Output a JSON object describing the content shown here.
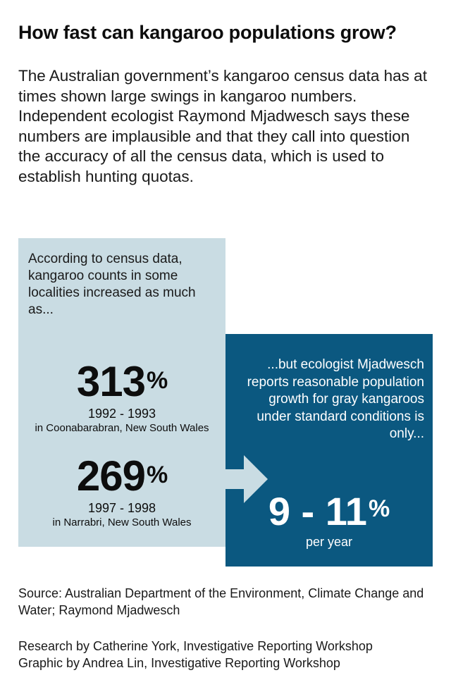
{
  "title": "How fast can kangaroo populations grow?",
  "intro": "The Australian government’s kangaroo census data has at times shown large swings in kangaroo numbers. Independent ecologist Raymond Mjadwesch says these numbers are implausible and that they call into question the accuracy of all the census data, which is used to establish hunting quotas.",
  "left_panel": {
    "lead": "According to census data, kangaroo counts in some localities increased as much as...",
    "stats": [
      {
        "value": "313",
        "unit": "%",
        "years": "1992 - 1993",
        "place": "in Coonabarabran, New South Wales"
      },
      {
        "value": "269",
        "unit": "%",
        "years": "1997 - 1998",
        "place": "in Narrabri, New South Wales"
      }
    ]
  },
  "right_panel": {
    "lead": "...but ecologist Mjadwesch reports reasonable population growth for gray kangaroos under standard conditions is only...",
    "value": "9 - 11",
    "unit": "%",
    "per": "per year"
  },
  "arrow_icon": "right-arrow-icon",
  "colors": {
    "left_panel_bg": "#c9dce3",
    "right_panel_bg": "#0b5880",
    "arrow": "#c9dce3"
  },
  "source": "Source: Australian Department of the Environment, Climate Change and Water; Raymond Mjadwesch",
  "credits": [
    "Research by Catherine York, Investigative Reporting Workshop",
    "Graphic by Andrea Lin, Investigative Reporting Workshop"
  ]
}
